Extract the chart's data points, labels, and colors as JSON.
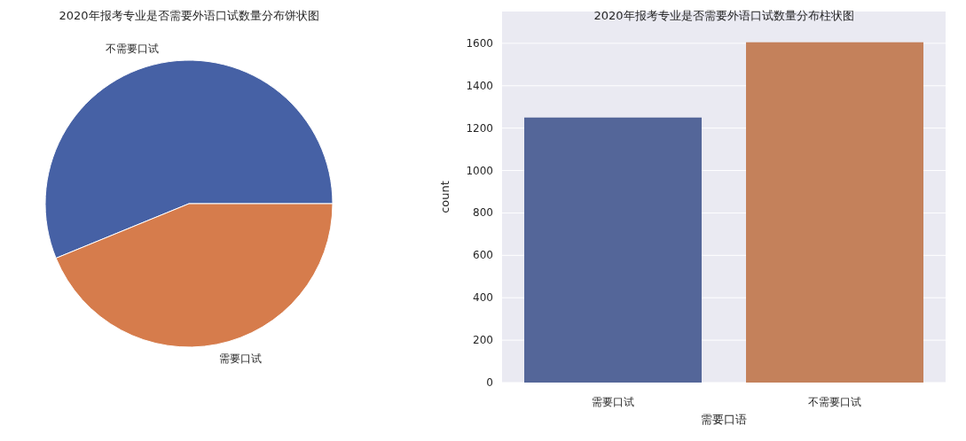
{
  "chart_data": [
    {
      "type": "pie",
      "title": "2020年报考专业是否需要外语口试数量分布饼状图",
      "categories": [
        "不需要口试",
        "需要口试"
      ],
      "values": [
        56.2,
        43.8
      ],
      "colors": [
        "#4661a5",
        "#d67c4c"
      ]
    },
    {
      "type": "bar",
      "title": "2020年报考专业是否需要外语口试数量分布柱状图",
      "categories": [
        "需要口试",
        "不需要口试"
      ],
      "values": [
        1250,
        1605
      ],
      "colors": [
        "#546699",
        "#c4815b"
      ],
      "xlabel": "需要口语",
      "ylabel": "count",
      "ylim": [
        0,
        1750
      ],
      "yticks": [
        0,
        200,
        400,
        600,
        800,
        1000,
        1200,
        1400,
        1600
      ],
      "grid": "y"
    }
  ]
}
